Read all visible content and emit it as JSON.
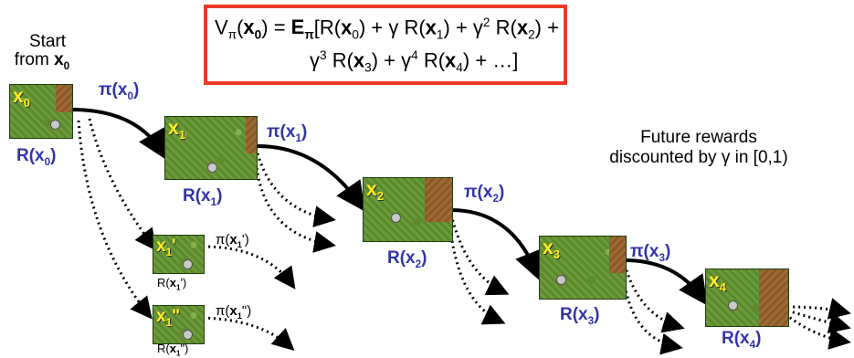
{
  "formula": {
    "line1": "Vπ(x0) = Eπ[R(x0) + γ R(x1) + γ2 R(x2) +",
    "line2": "γ3 R(x3) + γ4 R(x4) + …]"
  },
  "start_label": {
    "line1": "Start",
    "line2_prefix": "from ",
    "line2_state": "x",
    "line2_sub": "0"
  },
  "future_note": {
    "line1": "Future rewards",
    "line2": "discounted by γ  in [0,1)"
  },
  "states": [
    {
      "label": "x",
      "sub": "0",
      "sup": "",
      "reward": "R(x0)",
      "policy": "π(x0)"
    },
    {
      "label": "x",
      "sub": "1",
      "sup": "",
      "reward": "R(x1)",
      "policy": "π(x1)"
    },
    {
      "label": "x",
      "sub": "2",
      "sup": "",
      "reward": "R(x2)",
      "policy": "π(x2)"
    },
    {
      "label": "x",
      "sub": "3",
      "sup": "",
      "reward": "R(x3)",
      "policy": "π(x3)"
    },
    {
      "label": "x",
      "sub": "4",
      "sup": "",
      "reward": "R(x4)",
      "policy": ""
    }
  ],
  "alt_states": [
    {
      "label": "x",
      "sub": "1",
      "prime": "'",
      "reward": "R(x1')",
      "policy": "π(x1')"
    },
    {
      "label": "x",
      "sub": "1",
      "prime": "\"",
      "reward": "R(x1\")",
      "policy": "π(x1\")"
    }
  ]
}
